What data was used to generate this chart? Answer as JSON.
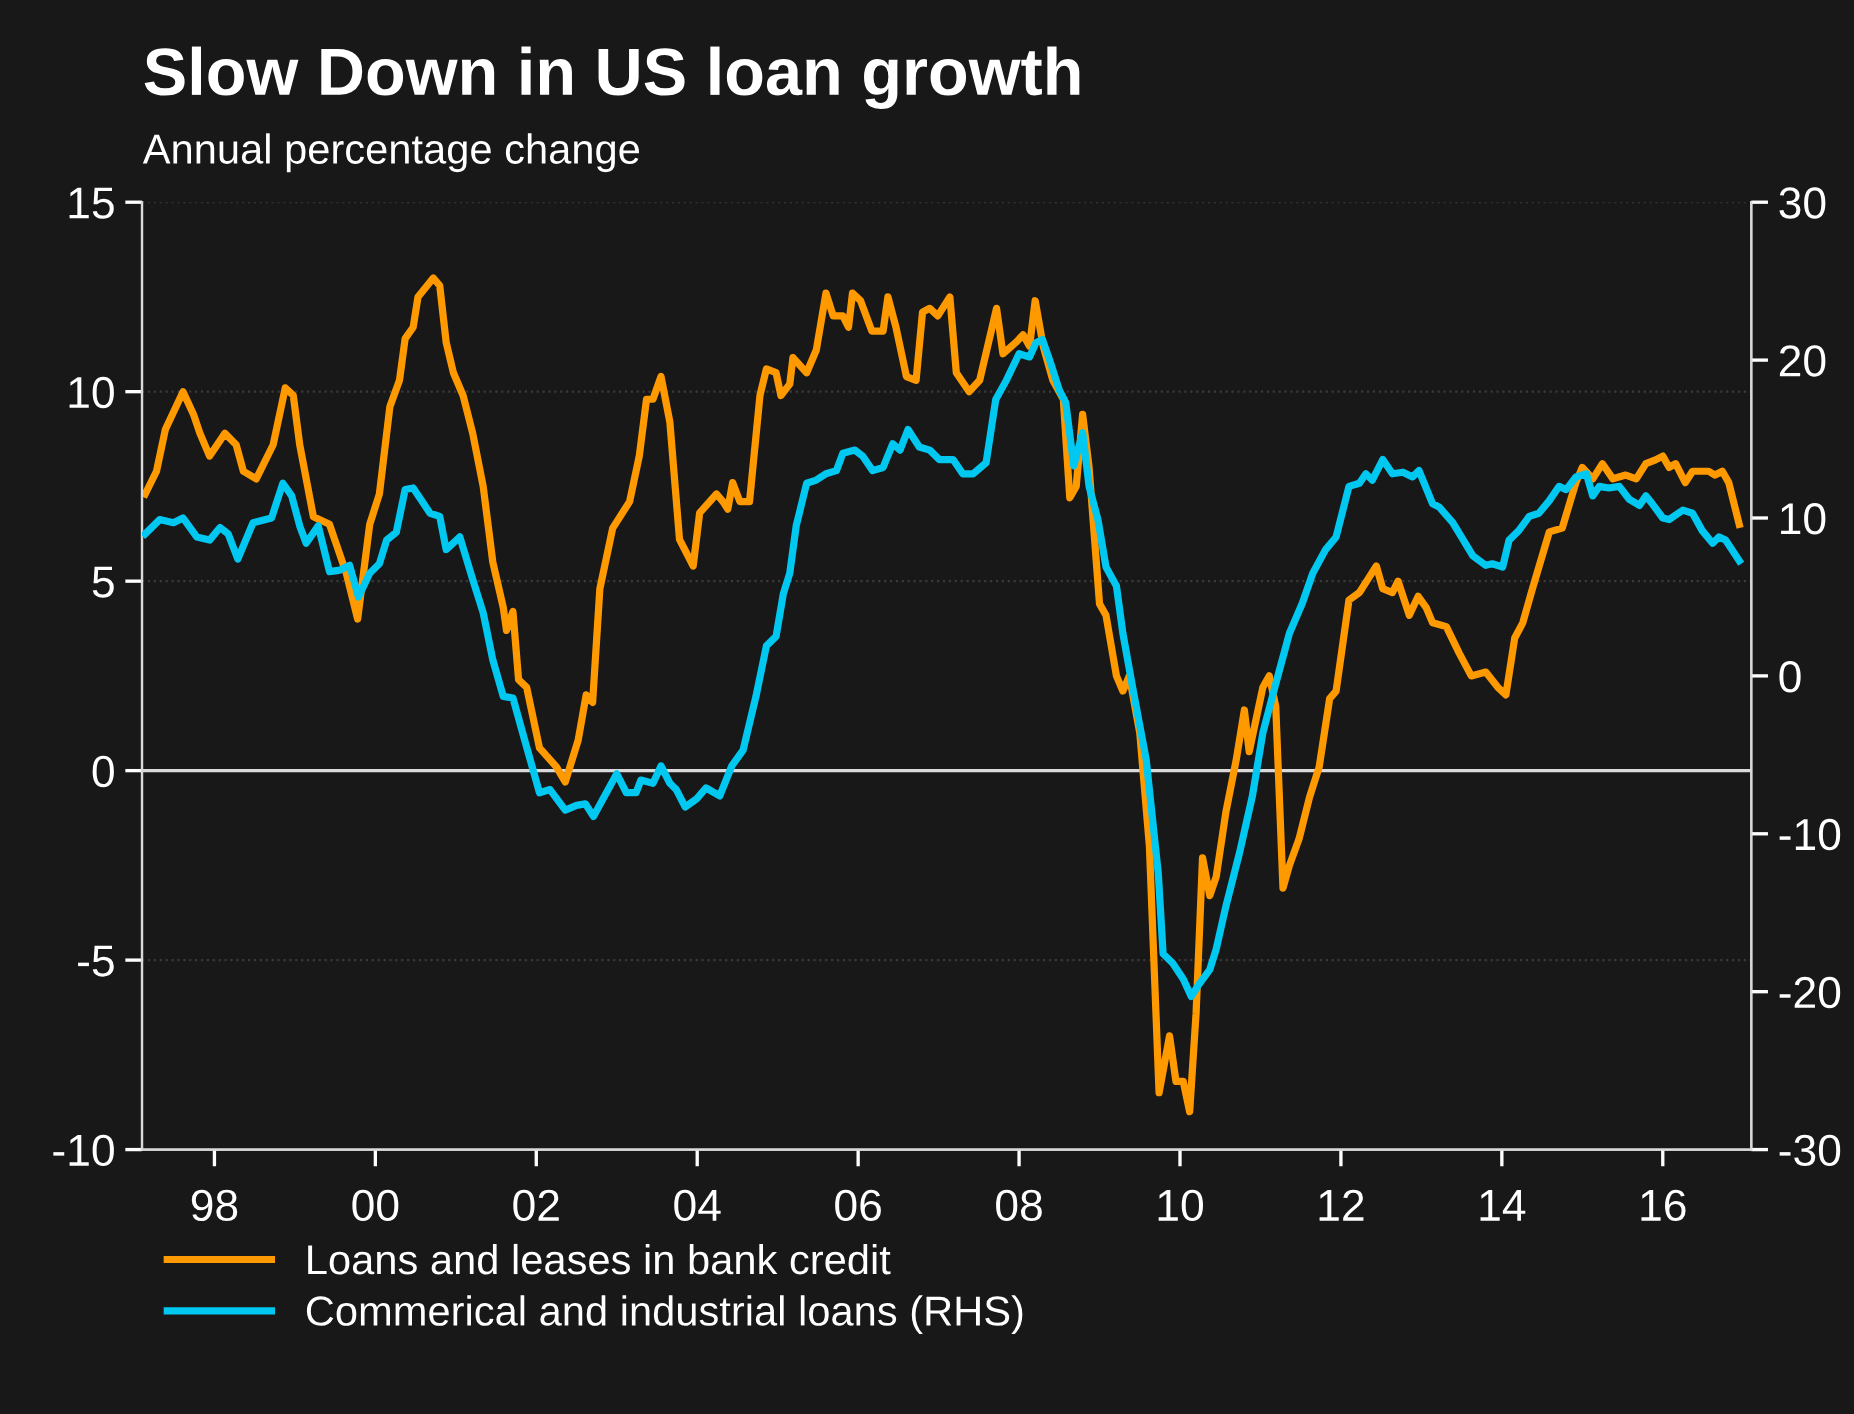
{
  "chart_data": {
    "type": "line",
    "title": "Slow Down in US loan growth",
    "subtitle": "Annual percentage change",
    "xlim": [
      1997.1,
      2017.1
    ],
    "xticks": [
      {
        "value": 1998,
        "label": "98"
      },
      {
        "value": 2000,
        "label": "00"
      },
      {
        "value": 2002,
        "label": "02"
      },
      {
        "value": 2004,
        "label": "04"
      },
      {
        "value": 2006,
        "label": "06"
      },
      {
        "value": 2008,
        "label": "08"
      },
      {
        "value": 2010,
        "label": "10"
      },
      {
        "value": 2012,
        "label": "12"
      },
      {
        "value": 2014,
        "label": "14"
      },
      {
        "value": 2016,
        "label": "16"
      }
    ],
    "ylim": [
      -10,
      15
    ],
    "yticks": [
      -10,
      -5,
      0,
      5,
      10,
      15
    ],
    "y2lim": [
      -30,
      30
    ],
    "y2ticks": [
      -30,
      -20,
      -10,
      0,
      10,
      20,
      30
    ],
    "grid": "y",
    "legend": "bottom",
    "line_style": "solid",
    "ref_lines": [
      {
        "axis": "y",
        "value": 0,
        "color": "#d9d9d9"
      }
    ],
    "series": [
      {
        "name": "Loans and leases in bank credit",
        "color": "#ff9900",
        "axis": "y",
        "x": [
          1997.14,
          1997.28,
          1997.39,
          1997.61,
          1997.74,
          1997.82,
          1997.94,
          1998.13,
          1998.27,
          1998.36,
          1998.52,
          1998.73,
          1998.88,
          1998.98,
          1999.06,
          1999.23,
          1999.43,
          1999.64,
          1999.78,
          1999.93,
          2000.05,
          2000.18,
          2000.3,
          2000.37,
          2000.47,
          2000.53,
          2000.72,
          2000.8,
          2000.88,
          2000.97,
          2001.09,
          2001.21,
          2001.34,
          2001.46,
          2001.59,
          2001.63,
          2001.71,
          2001.78,
          2001.88,
          2002.04,
          2002.25,
          2002.36,
          2002.52,
          2002.62,
          2002.7,
          2002.79,
          2002.95,
          2003.16,
          2003.28,
          2003.37,
          2003.45,
          2003.55,
          2003.66,
          2003.78,
          2003.95,
          2004.03,
          2004.24,
          2004.32,
          2004.38,
          2004.44,
          2004.53,
          2004.65,
          2004.78,
          2004.86,
          2004.98,
          2005.04,
          2005.15,
          2005.19,
          2005.36,
          2005.48,
          2005.6,
          2005.69,
          2005.81,
          2005.88,
          2005.93,
          2006.03,
          2006.17,
          2006.31,
          2006.37,
          2006.47,
          2006.6,
          2006.72,
          2006.8,
          2006.89,
          2006.99,
          2007.14,
          2007.22,
          2007.38,
          2007.51,
          2007.72,
          2007.8,
          2007.96,
          2008.05,
          2008.13,
          2008.2,
          2008.3,
          2008.42,
          2008.55,
          2008.63,
          2008.71,
          2008.79,
          2008.87,
          2009.0,
          2009.08,
          2009.21,
          2009.29,
          2009.37,
          2009.5,
          2009.62,
          2009.74,
          2009.87,
          2009.95,
          2010.04,
          2010.12,
          2010.2,
          2010.28,
          2010.37,
          2010.45,
          2010.57,
          2010.7,
          2010.8,
          2010.86,
          2010.94,
          2011.03,
          2011.11,
          2011.19,
          2011.28,
          2011.36,
          2011.48,
          2011.61,
          2011.73,
          2011.86,
          2011.94,
          2012.1,
          2012.23,
          2012.35,
          2012.44,
          2012.52,
          2012.64,
          2012.71,
          2012.85,
          2012.96,
          2013.06,
          2013.14,
          2013.31,
          2013.47,
          2013.62,
          2013.8,
          2013.95,
          2014.05,
          2014.16,
          2014.26,
          2014.38,
          2014.59,
          2014.75,
          2014.92,
          2015.0,
          2015.13,
          2015.25,
          2015.38,
          2015.54,
          2015.67,
          2015.79,
          2015.91,
          2016.0,
          2016.08,
          2016.16,
          2016.28,
          2016.37,
          2016.57,
          2016.65,
          2016.74,
          2016.82,
          2016.95
        ],
        "values": [
          7.3,
          7.9,
          9.0,
          10.0,
          9.4,
          8.9,
          8.3,
          8.9,
          8.6,
          7.9,
          7.7,
          8.6,
          10.1,
          9.9,
          8.6,
          6.7,
          6.5,
          5.2,
          4.0,
          6.5,
          7.3,
          9.6,
          10.3,
          11.4,
          11.7,
          12.5,
          13.0,
          12.8,
          11.3,
          10.5,
          9.9,
          8.9,
          7.5,
          5.5,
          4.3,
          3.7,
          4.2,
          2.4,
          2.2,
          0.6,
          0.1,
          -0.3,
          0.8,
          2.0,
          1.8,
          4.8,
          6.4,
          7.1,
          8.3,
          9.8,
          9.8,
          10.4,
          9.2,
          6.1,
          5.4,
          6.8,
          7.3,
          7.1,
          6.9,
          7.6,
          7.1,
          7.1,
          9.9,
          10.6,
          10.5,
          9.9,
          10.2,
          10.9,
          10.5,
          11.1,
          12.6,
          12.0,
          12.0,
          11.7,
          12.6,
          12.4,
          11.6,
          11.6,
          12.5,
          11.7,
          10.4,
          10.3,
          12.1,
          12.2,
          12.0,
          12.5,
          10.5,
          10.0,
          10.3,
          12.2,
          11.0,
          11.3,
          11.5,
          11.2,
          12.4,
          11.2,
          10.3,
          9.8,
          7.2,
          7.5,
          9.4,
          8.0,
          4.4,
          4.1,
          2.5,
          2.1,
          2.5,
          1.0,
          -2.0,
          -8.5,
          -7.0,
          -8.2,
          -8.2,
          -9.0,
          -6.4,
          -2.3,
          -3.3,
          -2.8,
          -1.1,
          0.3,
          1.6,
          0.5,
          1.3,
          2.2,
          2.5,
          1.7,
          -3.1,
          -2.5,
          -1.8,
          -0.7,
          0.1,
          1.9,
          2.1,
          4.5,
          4.7,
          5.1,
          5.4,
          4.8,
          4.7,
          5.0,
          4.1,
          4.6,
          4.3,
          3.9,
          3.8,
          3.1,
          2.5,
          2.6,
          2.2,
          2.0,
          3.5,
          3.9,
          4.8,
          6.3,
          6.4,
          7.6,
          8.0,
          7.7,
          8.1,
          7.7,
          7.8,
          7.7,
          8.1,
          8.2,
          8.3,
          8.0,
          8.1,
          7.6,
          7.9,
          7.9,
          7.8,
          7.9,
          7.6,
          6.5
        ]
      },
      {
        "name": "Commerical and industrial loans (RHS)",
        "color": "#00c8f0",
        "axis": "y2",
        "x": [
          1997.14,
          1997.32,
          1997.49,
          1997.61,
          1997.78,
          1997.94,
          1998.07,
          1998.17,
          1998.29,
          1998.48,
          1998.71,
          1998.85,
          1998.96,
          1999.06,
          1999.14,
          1999.29,
          1999.43,
          1999.56,
          1999.68,
          1999.79,
          1999.93,
          2000.05,
          2000.14,
          2000.26,
          2000.37,
          2000.47,
          2000.68,
          2000.8,
          2000.88,
          2001.05,
          2001.21,
          2001.34,
          2001.46,
          2001.59,
          2001.71,
          2001.83,
          2002.04,
          2002.17,
          2002.36,
          2002.5,
          2002.61,
          2002.71,
          2003.0,
          2003.12,
          2003.24,
          2003.3,
          2003.45,
          2003.55,
          2003.66,
          2003.74,
          2003.85,
          2003.99,
          2004.11,
          2004.28,
          2004.43,
          2004.57,
          2004.73,
          2004.86,
          2004.98,
          2005.07,
          2005.15,
          2005.23,
          2005.36,
          2005.48,
          2005.6,
          2005.73,
          2005.81,
          2005.96,
          2006.06,
          2006.18,
          2006.31,
          2006.43,
          2006.52,
          2006.62,
          2006.76,
          2006.89,
          2007.01,
          2007.18,
          2007.3,
          2007.43,
          2007.59,
          2007.71,
          2007.84,
          2008.0,
          2008.13,
          2008.21,
          2008.29,
          2008.38,
          2008.5,
          2008.58,
          2008.68,
          2008.79,
          2008.87,
          2008.98,
          2009.08,
          2009.21,
          2009.29,
          2009.41,
          2009.58,
          2009.73,
          2009.79,
          2009.91,
          2010.04,
          2010.14,
          2010.24,
          2010.37,
          2010.45,
          2010.57,
          2010.74,
          2010.9,
          2011.03,
          2011.19,
          2011.36,
          2011.52,
          2011.65,
          2011.81,
          2011.94,
          2012.1,
          2012.23,
          2012.31,
          2012.39,
          2012.52,
          2012.64,
          2012.77,
          2012.89,
          2012.97,
          2013.14,
          2013.22,
          2013.39,
          2013.64,
          2013.8,
          2013.88,
          2014.01,
          2014.09,
          2014.21,
          2014.34,
          2014.46,
          2014.59,
          2014.71,
          2014.8,
          2014.92,
          2015.05,
          2015.13,
          2015.21,
          2015.33,
          2015.46,
          2015.58,
          2015.71,
          2015.79,
          2015.87,
          2016.0,
          2016.08,
          2016.25,
          2016.37,
          2016.49,
          2016.62,
          2016.7,
          2016.78,
          2016.95
        ],
        "values": [
          9.0,
          9.9,
          9.7,
          10.0,
          8.8,
          8.6,
          9.4,
          9.0,
          7.4,
          9.7,
          10.0,
          12.2,
          11.4,
          9.5,
          8.4,
          9.5,
          6.6,
          6.7,
          7.0,
          5.0,
          6.5,
          7.1,
          8.6,
          9.1,
          11.8,
          11.9,
          10.3,
          10.1,
          8.0,
          8.8,
          6.1,
          4.0,
          1.0,
          -1.3,
          -1.4,
          -3.6,
          -7.4,
          -7.2,
          -8.5,
          -8.2,
          -8.1,
          -8.9,
          -6.2,
          -7.4,
          -7.4,
          -6.6,
          -6.8,
          -5.7,
          -6.8,
          -7.2,
          -8.3,
          -7.8,
          -7.1,
          -7.6,
          -5.7,
          -4.7,
          -1.3,
          1.9,
          2.5,
          5.2,
          6.5,
          9.5,
          12.2,
          12.4,
          12.8,
          13.0,
          14.1,
          14.3,
          13.9,
          13.0,
          13.2,
          14.7,
          14.3,
          15.6,
          14.5,
          14.3,
          13.7,
          13.7,
          12.8,
          12.8,
          13.5,
          17.5,
          18.7,
          20.4,
          20.2,
          21.1,
          21.3,
          20.0,
          18.1,
          17.3,
          13.3,
          15.4,
          12.0,
          9.9,
          6.9,
          5.7,
          2.7,
          -0.7,
          -5.3,
          -12.5,
          -17.6,
          -18.2,
          -19.2,
          -20.3,
          -19.5,
          -18.6,
          -17.3,
          -14.6,
          -11.2,
          -7.6,
          -3.6,
          -0.5,
          2.7,
          4.6,
          6.5,
          8.0,
          8.8,
          12.0,
          12.2,
          12.8,
          12.4,
          13.7,
          12.8,
          12.9,
          12.6,
          13.0,
          10.9,
          10.7,
          9.7,
          7.6,
          7.0,
          7.1,
          6.9,
          8.6,
          9.2,
          10.1,
          10.3,
          11.1,
          12.0,
          11.8,
          12.6,
          12.8,
          11.4,
          12.0,
          11.9,
          12.0,
          11.2,
          10.8,
          11.4,
          10.9,
          10.0,
          9.9,
          10.5,
          10.3,
          9.2,
          8.4,
          8.8,
          8.6,
          7.3
        ]
      }
    ]
  }
}
